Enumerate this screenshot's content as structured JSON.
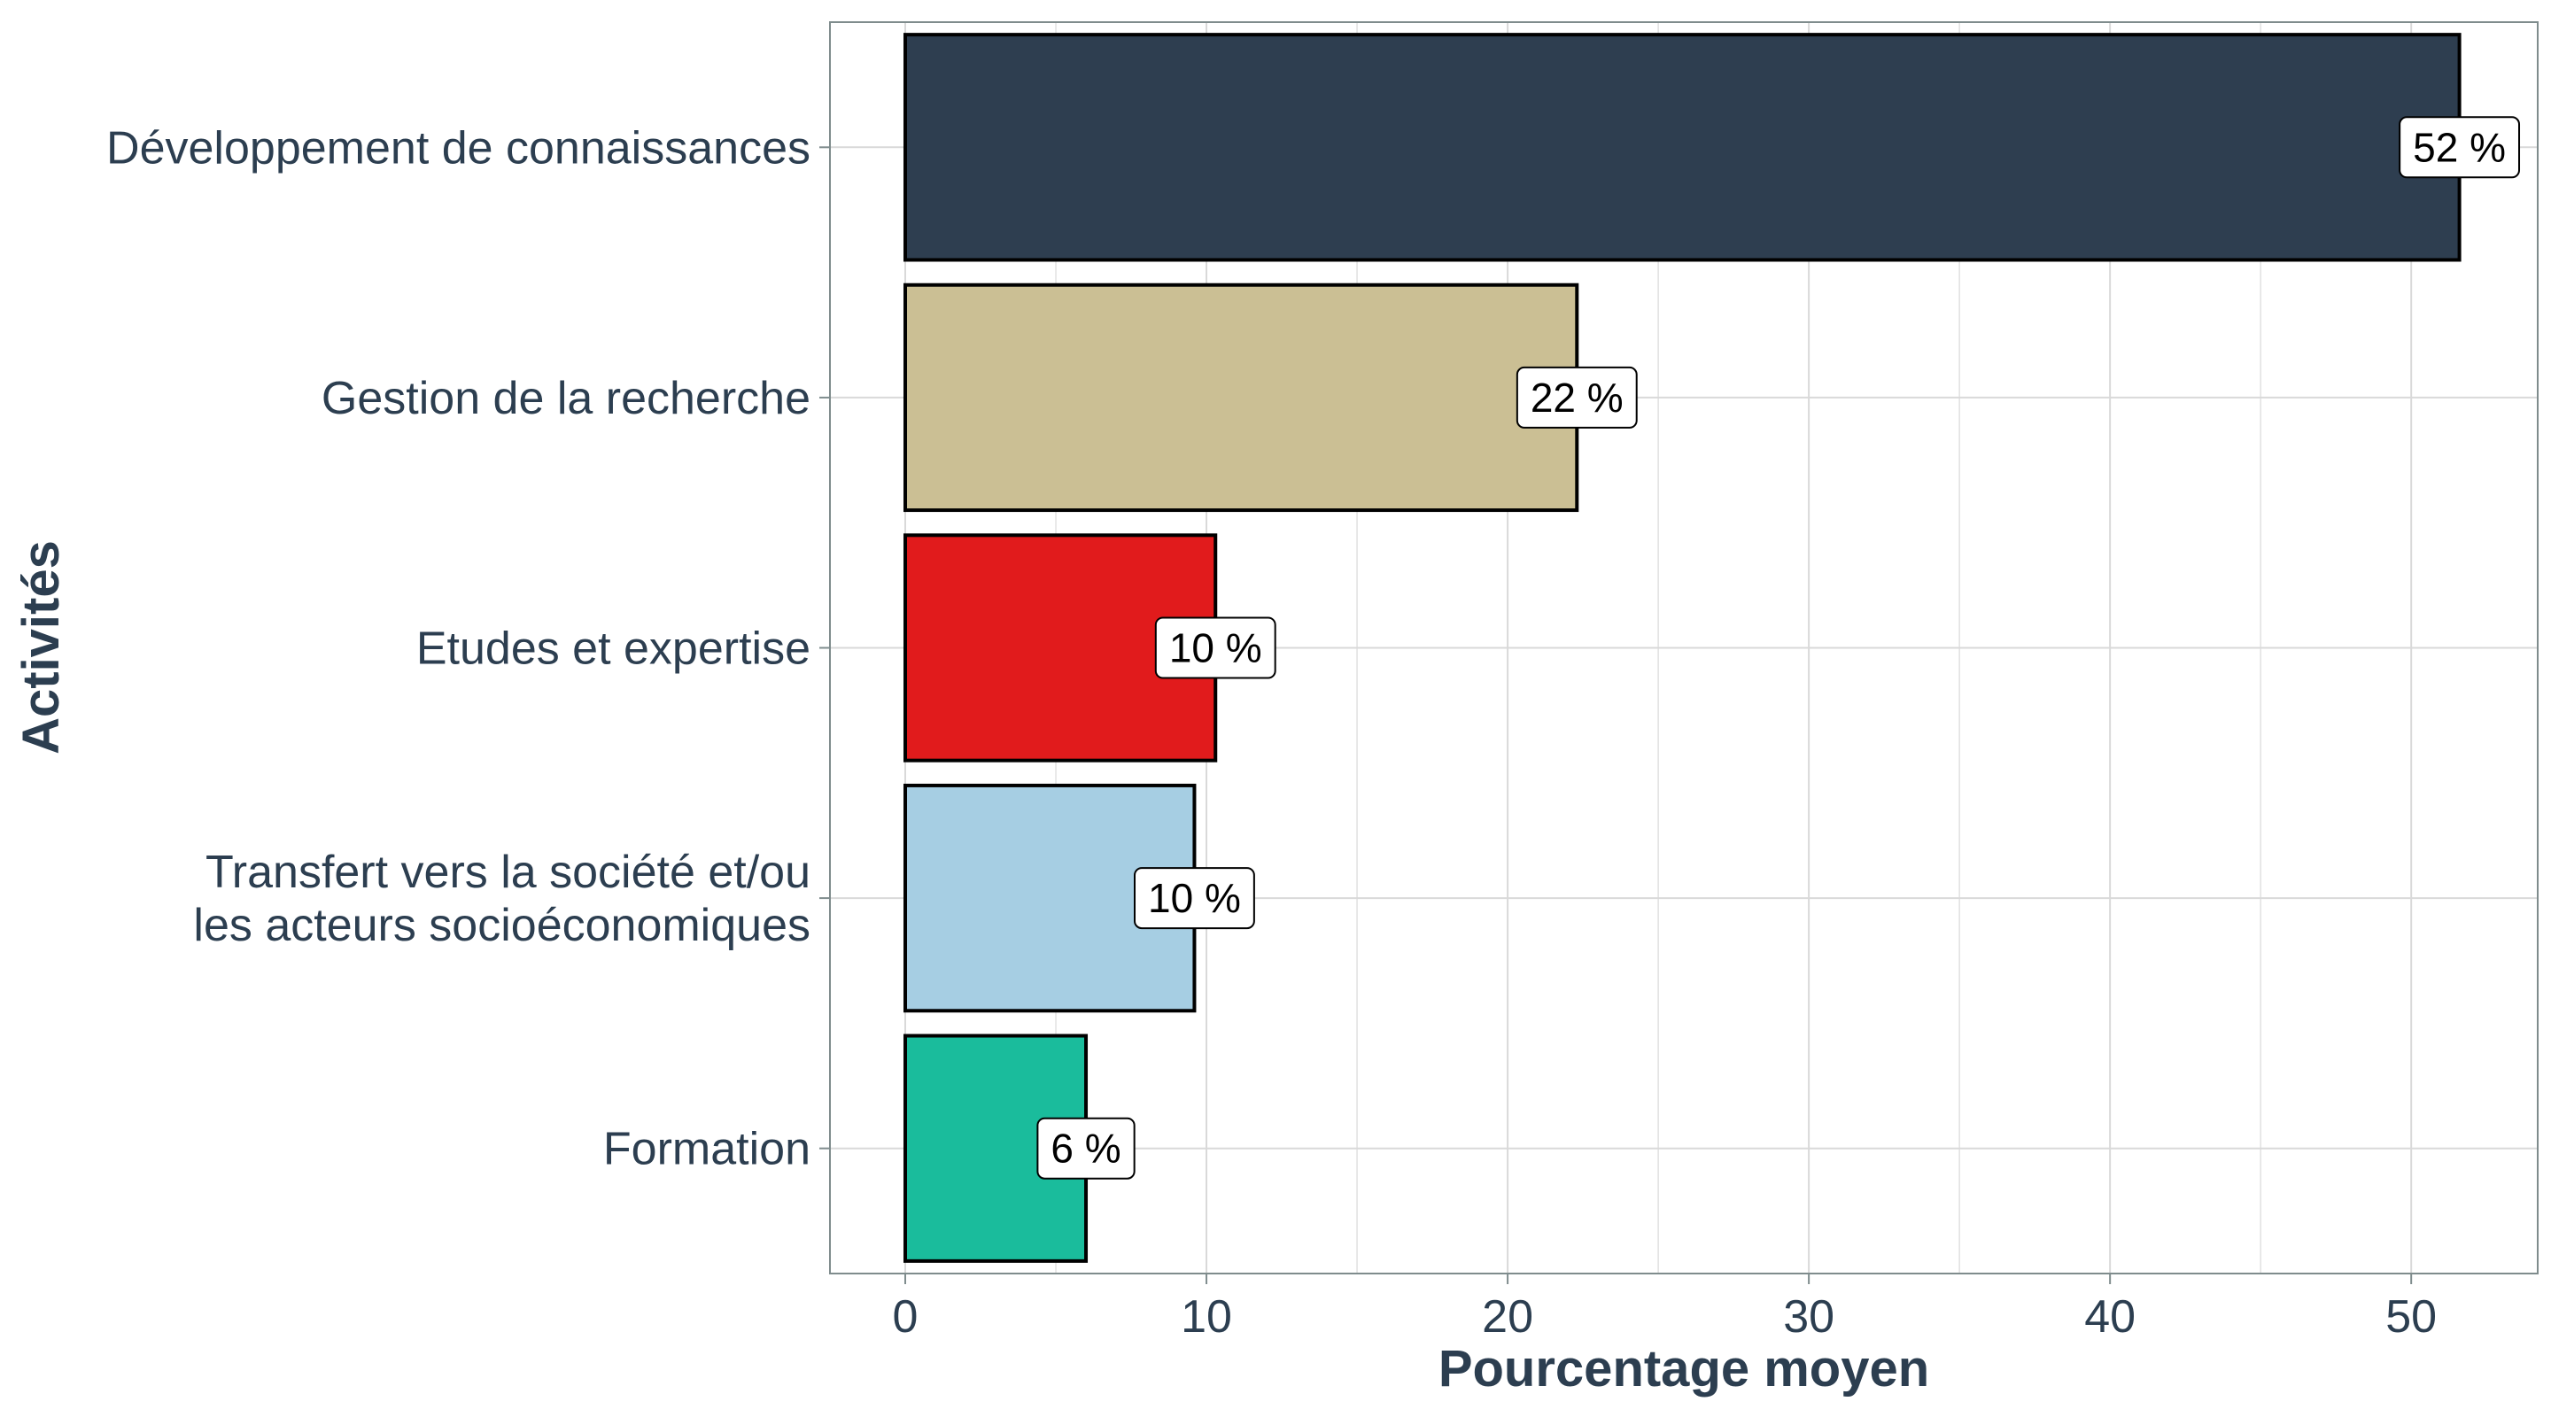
{
  "chart_data": {
    "type": "bar",
    "orientation": "horizontal",
    "categories": [
      "Développement de connaissances",
      "Gestion de la recherche",
      "Etudes et expertise",
      "Transfert vers la société et/ou les acteurs socioéconomiques",
      "Formation"
    ],
    "category_lines": [
      [
        "Développement de connaissances"
      ],
      [
        "Gestion de la recherche"
      ],
      [
        "Etudes et expertise"
      ],
      [
        "Transfert vers la société et/ou",
        "les acteurs socioéconomiques"
      ],
      [
        "Formation"
      ]
    ],
    "values": [
      51.6,
      22.3,
      10.3,
      9.6,
      6.0
    ],
    "data_labels": [
      "52 %",
      "22 %",
      "10 %",
      "10 %",
      "6 %"
    ],
    "colors": [
      "#2e3e50",
      "#cbbf94",
      "#e11b1c",
      "#a6cee3",
      "#1abc9c"
    ],
    "xlabel": "Pourcentage moyen",
    "ylabel": "Activités",
    "xlim": [
      -2.5,
      54.2
    ],
    "xticks": [
      0,
      10,
      20,
      30,
      40,
      50
    ],
    "grid": true,
    "legend": "none"
  }
}
